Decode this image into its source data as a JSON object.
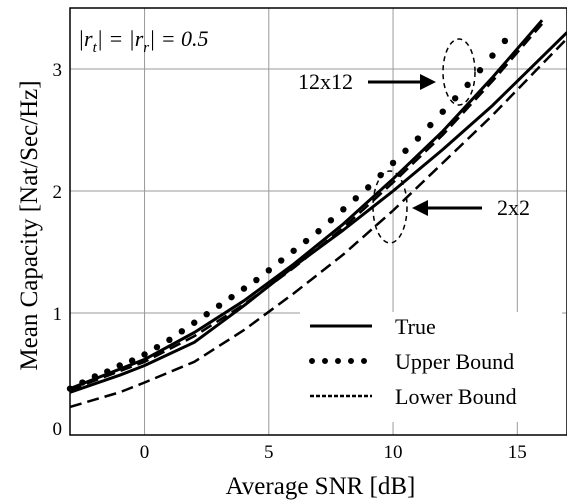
{
  "chart_data": {
    "type": "line",
    "title": "",
    "xlabel": "Average SNR [dB]",
    "ylabel": "Mean Capacity [Nat/Sec/Hz]",
    "xlim": [
      -3,
      17
    ],
    "ylim": [
      0,
      3.5
    ],
    "x_ticks": [
      0,
      5,
      10,
      15
    ],
    "y_ticks": [
      0,
      1,
      2,
      3
    ],
    "grid": true,
    "legend_position": "bottom-right",
    "legend": [
      {
        "label": "True",
        "style": "solid"
      },
      {
        "label": "Upper Bound",
        "style": "dotted"
      },
      {
        "label": "Lower Bound",
        "style": "dashed"
      }
    ],
    "inset_label": {
      "parts": [
        "|r",
        "t",
        "| = |r",
        "r",
        "| = 0.5"
      ]
    },
    "annotations": [
      {
        "text": "12x12",
        "target": "12x12 curve group"
      },
      {
        "text": "2x2",
        "target": "2x2 curve group"
      }
    ],
    "series": [
      {
        "group": "12x12",
        "style": "solid",
        "x": [
          -3,
          0,
          2,
          4,
          6,
          8,
          10,
          12,
          14,
          16
        ],
        "y": [
          0.38,
          0.62,
          0.84,
          1.1,
          1.4,
          1.73,
          2.1,
          2.49,
          2.93,
          3.4
        ]
      },
      {
        "group": "12x12",
        "style": "dotted",
        "x": [
          -3,
          -2.5,
          -2,
          -1.5,
          -1,
          -0.5,
          0,
          0.5,
          1,
          1.5,
          2,
          2.5,
          3,
          3.5,
          4,
          4.5,
          5,
          5.5,
          6,
          6.5,
          7,
          7.5,
          8,
          8.5,
          9,
          9.5,
          10,
          10.5,
          11,
          11.5,
          12,
          12.5,
          13,
          13.5,
          14,
          14.5
        ],
        "y": [
          0.38,
          0.43,
          0.48,
          0.52,
          0.57,
          0.61,
          0.66,
          0.72,
          0.78,
          0.85,
          0.92,
          0.99,
          1.06,
          1.13,
          1.2,
          1.27,
          1.35,
          1.43,
          1.51,
          1.59,
          1.67,
          1.76,
          1.85,
          1.94,
          2.03,
          2.13,
          2.23,
          2.33,
          2.43,
          2.54,
          2.65,
          2.76,
          2.87,
          2.99,
          3.11,
          3.23
        ]
      },
      {
        "group": "12x12",
        "style": "dashed",
        "x": [
          -3,
          0,
          2,
          4,
          6,
          8,
          10,
          12,
          14,
          16
        ],
        "y": [
          0.37,
          0.6,
          0.81,
          1.07,
          1.37,
          1.7,
          2.07,
          2.46,
          2.9,
          3.37
        ]
      },
      {
        "group": "2x2",
        "style": "solid",
        "x": [
          -3,
          -1,
          0,
          2,
          4,
          6,
          8,
          10,
          12,
          14,
          17
        ],
        "y": [
          0.35,
          0.49,
          0.57,
          0.76,
          1.06,
          1.38,
          1.68,
          2.0,
          2.34,
          2.7,
          3.3
        ]
      },
      {
        "group": "2x2",
        "style": "dashed",
        "x": [
          -3,
          -1,
          0,
          2,
          4,
          6,
          8,
          10,
          12,
          14,
          17
        ],
        "y": [
          0.23,
          0.35,
          0.43,
          0.6,
          0.86,
          1.16,
          1.48,
          1.84,
          2.23,
          2.62,
          3.25
        ]
      }
    ]
  }
}
